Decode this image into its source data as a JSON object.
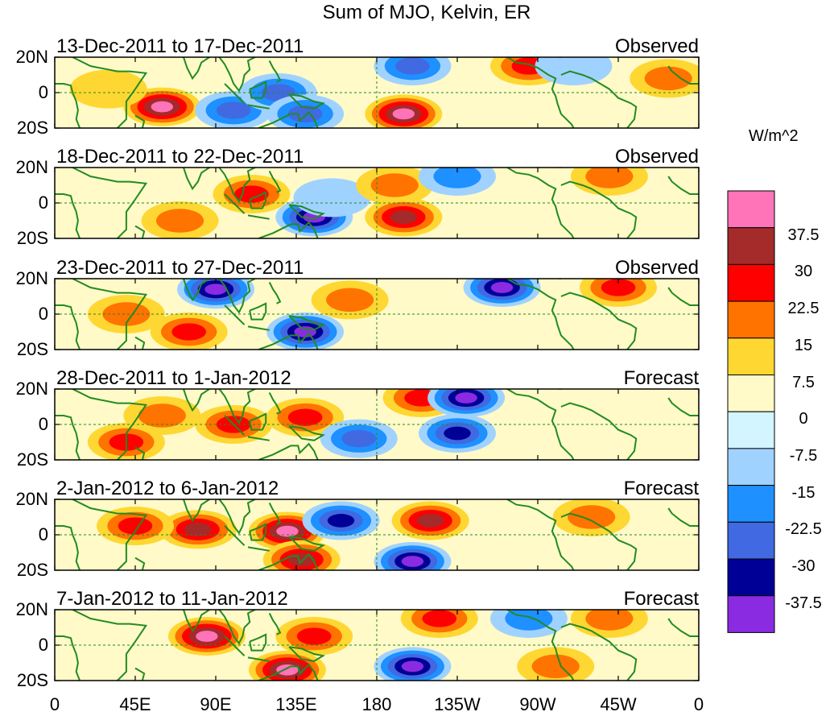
{
  "title": "Sum of MJO, Kelvin, ER",
  "colorbar": {
    "unit": "W/m^2",
    "levels": [
      "37.5",
      "30",
      "22.5",
      "15",
      "7.5",
      "0",
      "-7.5",
      "-15",
      "-22.5",
      "-30",
      "-37.5"
    ],
    "colors": [
      "#ff73b9",
      "#a52a2a",
      "#ff0000",
      "#ff7300",
      "#ffd732",
      "#fffac8",
      "#d2f5ff",
      "#a0d2ff",
      "#1e90ff",
      "#4169e1",
      "#000096",
      "#8a2be2"
    ]
  },
  "lat_ticks": [
    "20N",
    "0",
    "20S"
  ],
  "lon_ticks": [
    "0",
    "45E",
    "90E",
    "135E",
    "180",
    "135W",
    "90W",
    "45W",
    "0"
  ],
  "panels": [
    {
      "date": "13-Dec-2011 to 17-Dec-2011",
      "status": "Observed"
    },
    {
      "date": "18-Dec-2011 to 22-Dec-2011",
      "status": "Observed"
    },
    {
      "date": "23-Dec-2011 to 27-Dec-2011",
      "status": "Observed"
    },
    {
      "date": "28-Dec-2011 to 1-Jan-2012",
      "status": "Forecast"
    },
    {
      "date": "2-Jan-2012 to 6-Jan-2012",
      "status": "Forecast"
    },
    {
      "date": "7-Jan-2012 to 11-Jan-2012",
      "status": "Forecast"
    }
  ],
  "chart_data": {
    "type": "heatmap",
    "title": "Sum of MJO, Kelvin, ER",
    "x_range": [
      "0",
      "0"
    ],
    "y_range": [
      "20S",
      "20N"
    ],
    "colorbar_unit": "W/m^2",
    "panels": [
      {
        "period": "13-Dec-2011 to 17-Dec-2011",
        "status": "Observed",
        "anomalies": [
          {
            "lon": 60,
            "lat": -8,
            "value": 37.5
          },
          {
            "lon": 30,
            "lat": 2,
            "value": 7.5
          },
          {
            "lon": 100,
            "lat": -10,
            "value": -22.5
          },
          {
            "lon": 125,
            "lat": 0,
            "value": -22.5
          },
          {
            "lon": 140,
            "lat": -12,
            "value": -22.5
          },
          {
            "lon": 195,
            "lat": -12,
            "value": 37.5
          },
          {
            "lon": 200,
            "lat": 15,
            "value": -22.5
          },
          {
            "lon": 265,
            "lat": 15,
            "value": 22.5
          },
          {
            "lon": 290,
            "lat": 15,
            "value": -7.5
          },
          {
            "lon": 343,
            "lat": 8,
            "value": 15
          }
        ]
      },
      {
        "period": "18-Dec-2011 to 22-Dec-2011",
        "status": "Observed",
        "anomalies": [
          {
            "lon": 70,
            "lat": -10,
            "value": 15
          },
          {
            "lon": 110,
            "lat": 5,
            "value": 22.5
          },
          {
            "lon": 145,
            "lat": -8,
            "value": -37.5
          },
          {
            "lon": 155,
            "lat": 3,
            "value": -7.5
          },
          {
            "lon": 190,
            "lat": 10,
            "value": 15
          },
          {
            "lon": 195,
            "lat": -8,
            "value": 30
          },
          {
            "lon": 225,
            "lat": 15,
            "value": -15
          },
          {
            "lon": 310,
            "lat": 15,
            "value": 15
          }
        ]
      },
      {
        "period": "23-Dec-2011 to 27-Dec-2011",
        "status": "Observed",
        "anomalies": [
          {
            "lon": 90,
            "lat": 14,
            "value": -37.5
          },
          {
            "lon": 75,
            "lat": -10,
            "value": 22.5
          },
          {
            "lon": 40,
            "lat": 0,
            "value": 15
          },
          {
            "lon": 140,
            "lat": -10,
            "value": -37.5
          },
          {
            "lon": 165,
            "lat": 8,
            "value": 15
          },
          {
            "lon": 250,
            "lat": 15,
            "value": -37.5
          },
          {
            "lon": 315,
            "lat": 15,
            "value": 22.5
          }
        ]
      },
      {
        "period": "28-Dec-2011 to 1-Jan-2012",
        "status": "Forecast",
        "anomalies": [
          {
            "lon": 60,
            "lat": 5,
            "value": 15
          },
          {
            "lon": 40,
            "lat": -10,
            "value": 22.5
          },
          {
            "lon": 100,
            "lat": 0,
            "value": 22.5
          },
          {
            "lon": 140,
            "lat": 4,
            "value": 22.5
          },
          {
            "lon": 170,
            "lat": -8,
            "value": -22.5
          },
          {
            "lon": 205,
            "lat": 15,
            "value": 22.5
          },
          {
            "lon": 230,
            "lat": 15,
            "value": -37.5
          },
          {
            "lon": 225,
            "lat": -5,
            "value": -30
          }
        ]
      },
      {
        "period": "2-Jan-2012 to 6-Jan-2012",
        "status": "Forecast",
        "anomalies": [
          {
            "lon": 80,
            "lat": 3,
            "value": 30
          },
          {
            "lon": 45,
            "lat": 5,
            "value": 22.5
          },
          {
            "lon": 130,
            "lat": 2,
            "value": 37.5
          },
          {
            "lon": 138,
            "lat": -14,
            "value": 30
          },
          {
            "lon": 160,
            "lat": 8,
            "value": -30
          },
          {
            "lon": 200,
            "lat": -15,
            "value": -37.5
          },
          {
            "lon": 210,
            "lat": 8,
            "value": 30
          },
          {
            "lon": 300,
            "lat": 10,
            "value": 15
          }
        ]
      },
      {
        "period": "7-Jan-2012 to 11-Jan-2012",
        "status": "Forecast",
        "anomalies": [
          {
            "lon": 85,
            "lat": 5,
            "value": 37.5
          },
          {
            "lon": 130,
            "lat": -14,
            "value": 37.5
          },
          {
            "lon": 145,
            "lat": 5,
            "value": 22.5
          },
          {
            "lon": 200,
            "lat": -12,
            "value": -37.5
          },
          {
            "lon": 215,
            "lat": 15,
            "value": 22.5
          },
          {
            "lon": 265,
            "lat": 15,
            "value": -15
          },
          {
            "lon": 280,
            "lat": -12,
            "value": 15
          },
          {
            "lon": 310,
            "lat": 15,
            "value": 15
          }
        ]
      }
    ]
  }
}
